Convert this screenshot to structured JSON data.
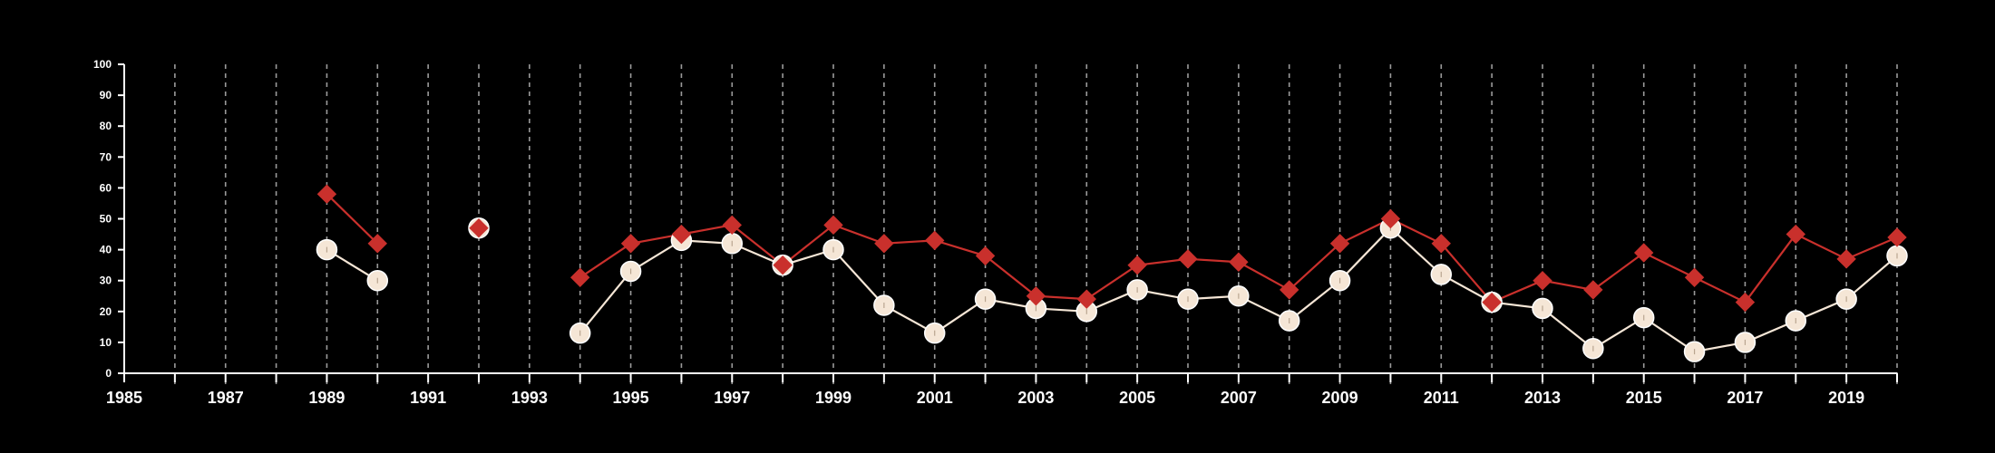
{
  "chart_data": {
    "type": "line",
    "x_range": [
      1985,
      2020
    ],
    "y_range": [
      0,
      100
    ],
    "x_ticks": [
      "1985",
      "1987",
      "1989",
      "1991",
      "1993",
      "1995",
      "1997",
      "1999",
      "2001",
      "2003",
      "2005",
      "2007",
      "2009",
      "2011",
      "2013",
      "2015",
      "2017",
      "2019"
    ],
    "y_ticks": [
      "0",
      "10",
      "20",
      "30",
      "40",
      "50",
      "60",
      "70",
      "80",
      "90",
      "100"
    ],
    "grid": "vertical dashed lines at every year",
    "colors": {
      "background": "#000000",
      "series_a": "#c9302c",
      "series_b": "#f5e6d6",
      "axis": "#ffffff",
      "grid": "#9a9a9a"
    },
    "series": [
      {
        "marker": "diamond",
        "color": "#c9302c",
        "points": [
          [
            1989,
            58
          ],
          [
            1990,
            42
          ],
          [
            1992,
            47
          ],
          [
            1994,
            31
          ],
          [
            1995,
            42
          ],
          [
            1996,
            45
          ],
          [
            1997,
            48
          ],
          [
            1998,
            35
          ],
          [
            1999,
            48
          ],
          [
            2000,
            42
          ],
          [
            2001,
            43
          ],
          [
            2002,
            38
          ],
          [
            2003,
            25
          ],
          [
            2004,
            24
          ],
          [
            2005,
            35
          ],
          [
            2006,
            37
          ],
          [
            2007,
            36
          ],
          [
            2008,
            27
          ],
          [
            2009,
            42
          ],
          [
            2010,
            50
          ],
          [
            2011,
            42
          ],
          [
            2012,
            23
          ],
          [
            2013,
            30
          ],
          [
            2014,
            27
          ],
          [
            2015,
            39
          ],
          [
            2016,
            31
          ],
          [
            2017,
            23
          ],
          [
            2018,
            45
          ],
          [
            2019,
            37
          ],
          [
            2020,
            44
          ]
        ]
      },
      {
        "marker": "circle",
        "color": "#f5e6d6",
        "points": [
          [
            1989,
            40
          ],
          [
            1990,
            30
          ],
          [
            1992,
            47
          ],
          [
            1994,
            13
          ],
          [
            1995,
            33
          ],
          [
            1996,
            43
          ],
          [
            1997,
            42
          ],
          [
            1998,
            35
          ],
          [
            1999,
            40
          ],
          [
            2000,
            22
          ],
          [
            2001,
            13
          ],
          [
            2002,
            24
          ],
          [
            2003,
            21
          ],
          [
            2004,
            20
          ],
          [
            2005,
            27
          ],
          [
            2006,
            24
          ],
          [
            2007,
            25
          ],
          [
            2008,
            17
          ],
          [
            2009,
            30
          ],
          [
            2010,
            47
          ],
          [
            2011,
            32
          ],
          [
            2012,
            23
          ],
          [
            2013,
            21
          ],
          [
            2014,
            8
          ],
          [
            2015,
            18
          ],
          [
            2016,
            7
          ],
          [
            2017,
            10
          ],
          [
            2018,
            17
          ],
          [
            2019,
            24
          ],
          [
            2020,
            38
          ]
        ]
      }
    ]
  }
}
